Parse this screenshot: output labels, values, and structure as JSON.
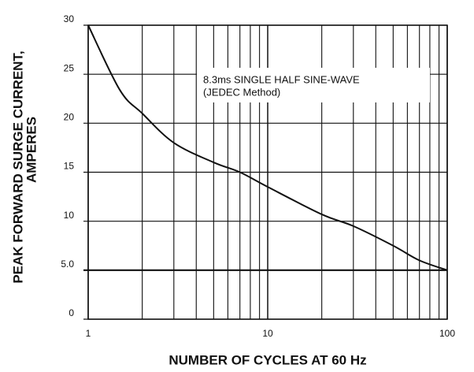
{
  "chart_data": {
    "type": "line",
    "ylabel": [
      "PEAK  FORWARD SURGE CURRENT,",
      "AMPERES"
    ],
    "xlabel": "NUMBER OF CYCLES AT 60 Hz",
    "annotation": [
      "8.3ms SINGLE HALF SINE-WAVE",
      "(JEDEC Method)"
    ],
    "x": [
      1,
      1.5,
      2,
      3,
      5,
      7,
      10,
      20,
      30,
      50,
      70,
      100
    ],
    "values": [
      30,
      23.4,
      21,
      18,
      16,
      15,
      13.5,
      10.7,
      9.5,
      7.5,
      6,
      5
    ],
    "color": "#111111",
    "xscale": "log",
    "xlim": [
      1,
      100
    ],
    "xticks": [
      1,
      10,
      100
    ],
    "x_minor_ticks": [
      2,
      3,
      4,
      5,
      6,
      7,
      8,
      9,
      20,
      30,
      40,
      50,
      60,
      70,
      80,
      90
    ],
    "ylim": [
      0,
      30
    ],
    "yticks": [
      0,
      {
        "value": 5,
        "label": "5.0"
      },
      10,
      15,
      20,
      25,
      30
    ],
    "grid": true
  }
}
